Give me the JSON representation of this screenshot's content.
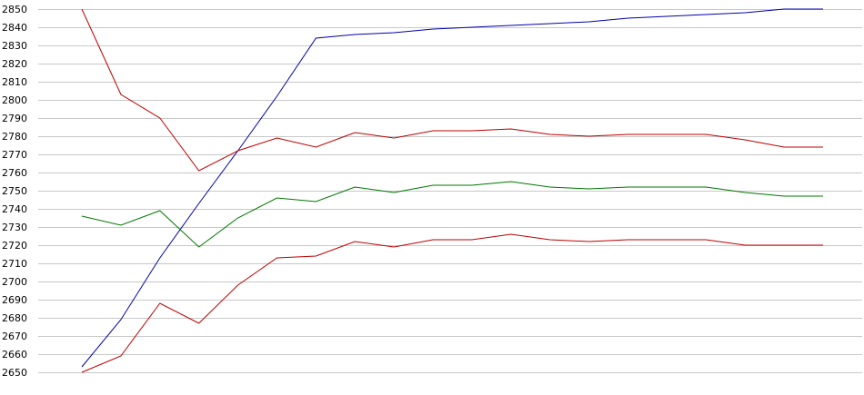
{
  "chart_data": {
    "type": "line",
    "title": "",
    "xlabel": "",
    "ylabel": "",
    "ylim": [
      2650,
      2850
    ],
    "ytick_step": 10,
    "grid": true,
    "legend": "none",
    "x": [
      1,
      2,
      3,
      4,
      5,
      6,
      7,
      8,
      9,
      10,
      11,
      12,
      13,
      14,
      15,
      16,
      17,
      18,
      19,
      20
    ],
    "series": [
      {
        "color": "#0000aa",
        "values": [
          2653,
          2679,
          2713,
          2743,
          2772,
          2802,
          2834,
          2836,
          2837,
          2839,
          2840,
          2841,
          2842,
          2843,
          2845,
          2846,
          2847,
          2848,
          2850,
          2850
        ]
      },
      {
        "color": "#bb0000",
        "values": [
          2850,
          2803,
          2790,
          2761,
          2772,
          2779,
          2774,
          2782,
          2779,
          2783,
          2783,
          2784,
          2781,
          2780,
          2781,
          2781,
          2781,
          2778,
          2774,
          2774
        ]
      },
      {
        "color": "#007700",
        "values": [
          2736,
          2731,
          2739,
          2719,
          2735,
          2746,
          2744,
          2752,
          2749,
          2753,
          2753,
          2755,
          2752,
          2751,
          2752,
          2752,
          2752,
          2749,
          2747,
          2747
        ]
      },
      {
        "color": "#bb0000",
        "values": [
          2650,
          2659,
          2688,
          2677,
          2698,
          2713,
          2714,
          2722,
          2719,
          2723,
          2723,
          2726,
          2723,
          2722,
          2723,
          2723,
          2723,
          2720,
          2720,
          2720
        ]
      }
    ]
  }
}
